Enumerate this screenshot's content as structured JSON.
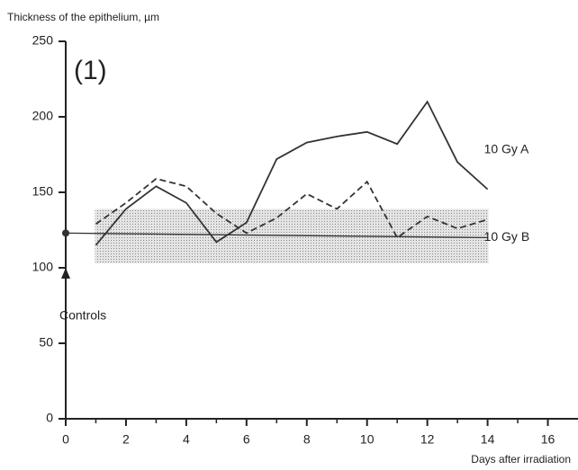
{
  "chart_data": {
    "type": "line",
    "title": "(1)",
    "ylabel": "Thickness of the epithelium, µm",
    "xlabel": "Days after irradiation",
    "xlim": [
      0,
      17
    ],
    "xticks": [
      0,
      2,
      4,
      6,
      8,
      10,
      12,
      14,
      16
    ],
    "ylim": [
      0,
      250
    ],
    "yticks": [
      0,
      50,
      100,
      150,
      200,
      250
    ],
    "series": [
      {
        "name": "10 Gy A",
        "color": "#333333",
        "dash": "solid",
        "x": [
          1,
          2,
          3,
          4,
          5,
          6,
          7,
          8,
          9,
          10,
          11,
          12,
          13,
          14
        ],
        "values": [
          115,
          139,
          154,
          143,
          117,
          130,
          172,
          183,
          187,
          190,
          182,
          210,
          170,
          152
        ]
      },
      {
        "name": "10 Gy B",
        "color": "#333333",
        "dash": "dashed",
        "x": [
          1,
          2,
          3,
          4,
          5,
          6,
          7,
          8,
          9,
          10,
          11,
          12,
          13,
          14
        ],
        "values": [
          129,
          143,
          159,
          154,
          136,
          123,
          133,
          149,
          139,
          157,
          120,
          134,
          126,
          132
        ]
      }
    ],
    "controls": {
      "label": "Controls",
      "x": [
        0,
        14
      ],
      "values": [
        123,
        120
      ],
      "band": [
        103,
        139
      ]
    }
  }
}
